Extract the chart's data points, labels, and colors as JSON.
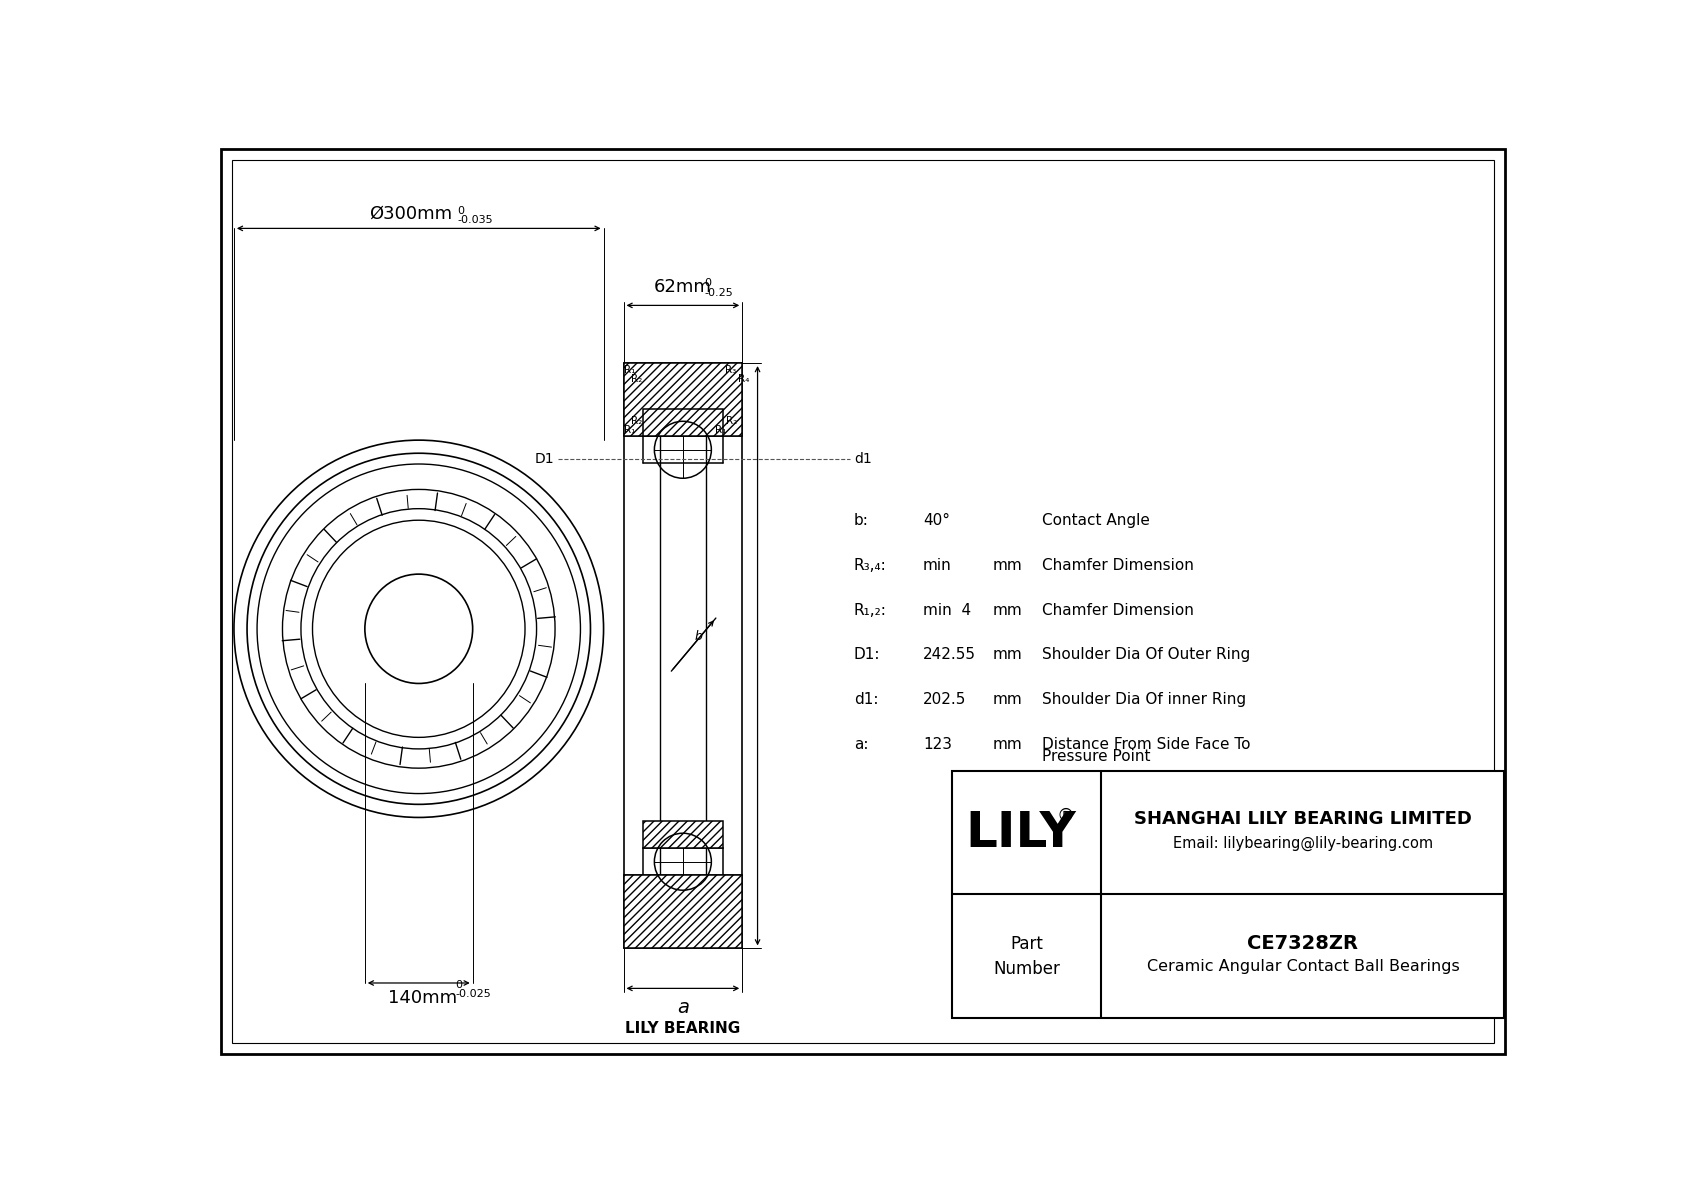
{
  "bg_color": "#ffffff",
  "line_color": "#000000",
  "params": [
    {
      "symbol": "b:",
      "value": "40°",
      "unit": "",
      "desc": "Contact Angle"
    },
    {
      "symbol": "R₃,₄:",
      "value": "min",
      "unit": "mm",
      "desc": "Chamfer Dimension"
    },
    {
      "symbol": "R₁,₂:",
      "value": "min  4",
      "unit": "mm",
      "desc": "Chamfer Dimension"
    },
    {
      "symbol": "D1:",
      "value": "242.55",
      "unit": "mm",
      "desc": "Shoulder Dia Of Outer Ring"
    },
    {
      "symbol": "d1:",
      "value": "202.5",
      "unit": "mm",
      "desc": "Shoulder Dia Of inner Ring"
    },
    {
      "symbol": "a:",
      "value": "123",
      "unit": "mm",
      "desc": "Distance From Side Face To\nPressure Point"
    }
  ],
  "company": "SHANGHAI LILY BEARING LIMITED",
  "email": "Email: lilybearing@lily-bearing.com",
  "part_number": "CE7328ZR",
  "part_desc": "Ceramic Angular Contact Ball Bearings",
  "outer_dim": "Ø300mm",
  "outer_tol_top": "0",
  "outer_tol_bot": "-0.035",
  "inner_dim": "140mm",
  "inner_tol_top": "0",
  "inner_tol_bot": "-0.025",
  "width_dim": "62mm",
  "width_tol_top": "0",
  "width_tol_bot": "-0.25"
}
